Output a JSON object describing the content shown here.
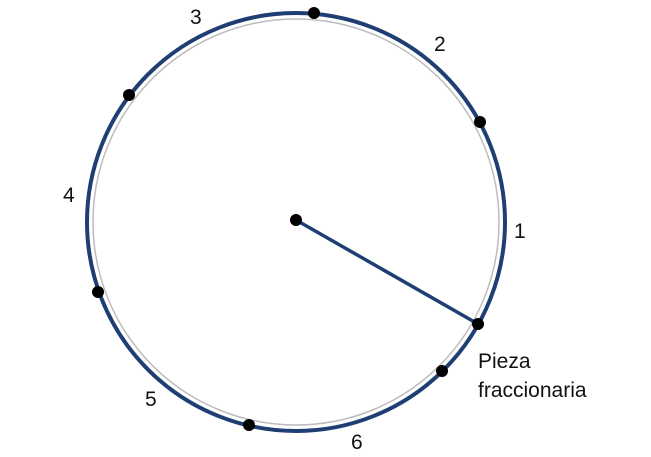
{
  "segment_labels": {
    "seg1": "1",
    "seg2": "2",
    "seg3": "3",
    "seg4": "4",
    "seg5": "5",
    "seg6": "6"
  },
  "fraction_label": {
    "line1": "Pieza",
    "line2": "fraccionaria"
  },
  "colors": {
    "arc": "#1f3f74",
    "inner_circle": "#bdbdbd",
    "dot": "#000000",
    "radius_line": "#1f3f74"
  }
}
